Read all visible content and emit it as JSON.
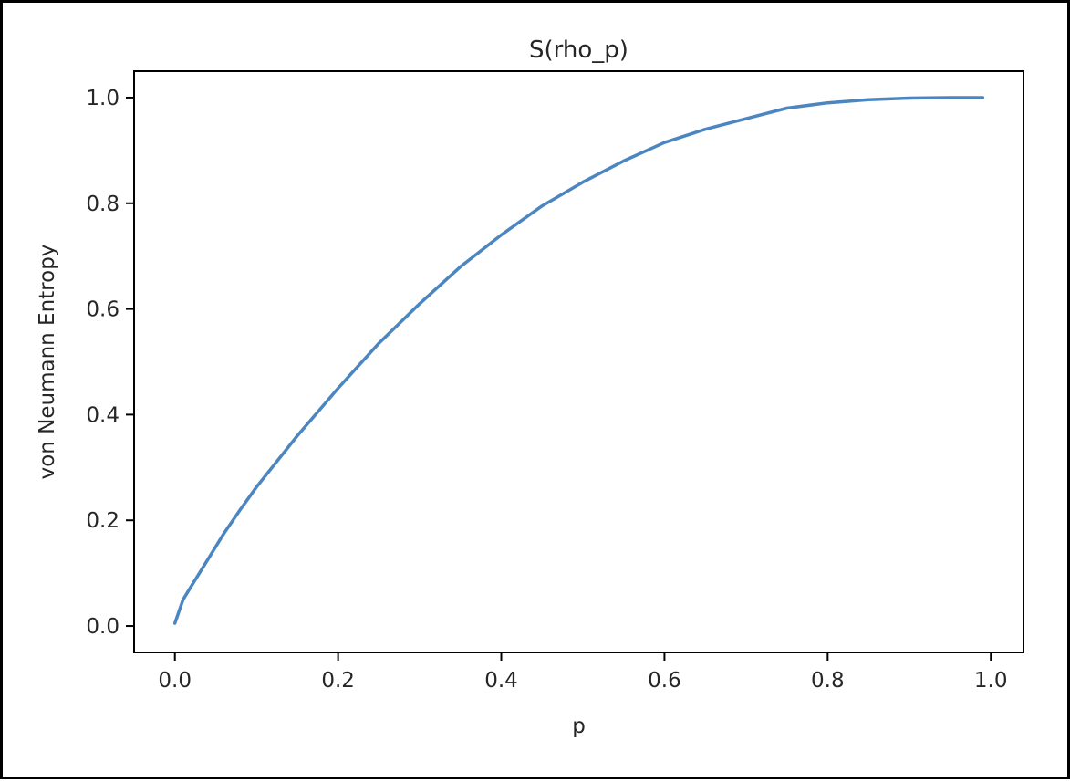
{
  "chart_data": {
    "type": "line",
    "title": "S(rho_p)",
    "xlabel": "p",
    "ylabel": "von Neumann Entropy",
    "xlim": [
      -0.05,
      1.04
    ],
    "ylim": [
      -0.05,
      1.05
    ],
    "xticks": [
      "0.0",
      "0.2",
      "0.4",
      "0.6",
      "0.8",
      "1.0"
    ],
    "yticks": [
      "0.0",
      "0.2",
      "0.4",
      "0.6",
      "0.8",
      "1.0"
    ],
    "grid": false,
    "legend": "none",
    "series": [
      {
        "color": "#4c86c0",
        "x": [
          0.0,
          0.01,
          0.02,
          0.04,
          0.06,
          0.08,
          0.1,
          0.15,
          0.2,
          0.25,
          0.3,
          0.35,
          0.4,
          0.45,
          0.5,
          0.55,
          0.6,
          0.65,
          0.7,
          0.75,
          0.8,
          0.85,
          0.9,
          0.95,
          0.99
        ],
        "y": [
          0.005,
          0.05,
          0.075,
          0.125,
          0.175,
          0.22,
          0.263,
          0.36,
          0.45,
          0.535,
          0.61,
          0.68,
          0.74,
          0.795,
          0.84,
          0.88,
          0.915,
          0.94,
          0.96,
          0.98,
          0.99,
          0.996,
          0.999,
          1.0,
          1.0
        ]
      }
    ]
  }
}
